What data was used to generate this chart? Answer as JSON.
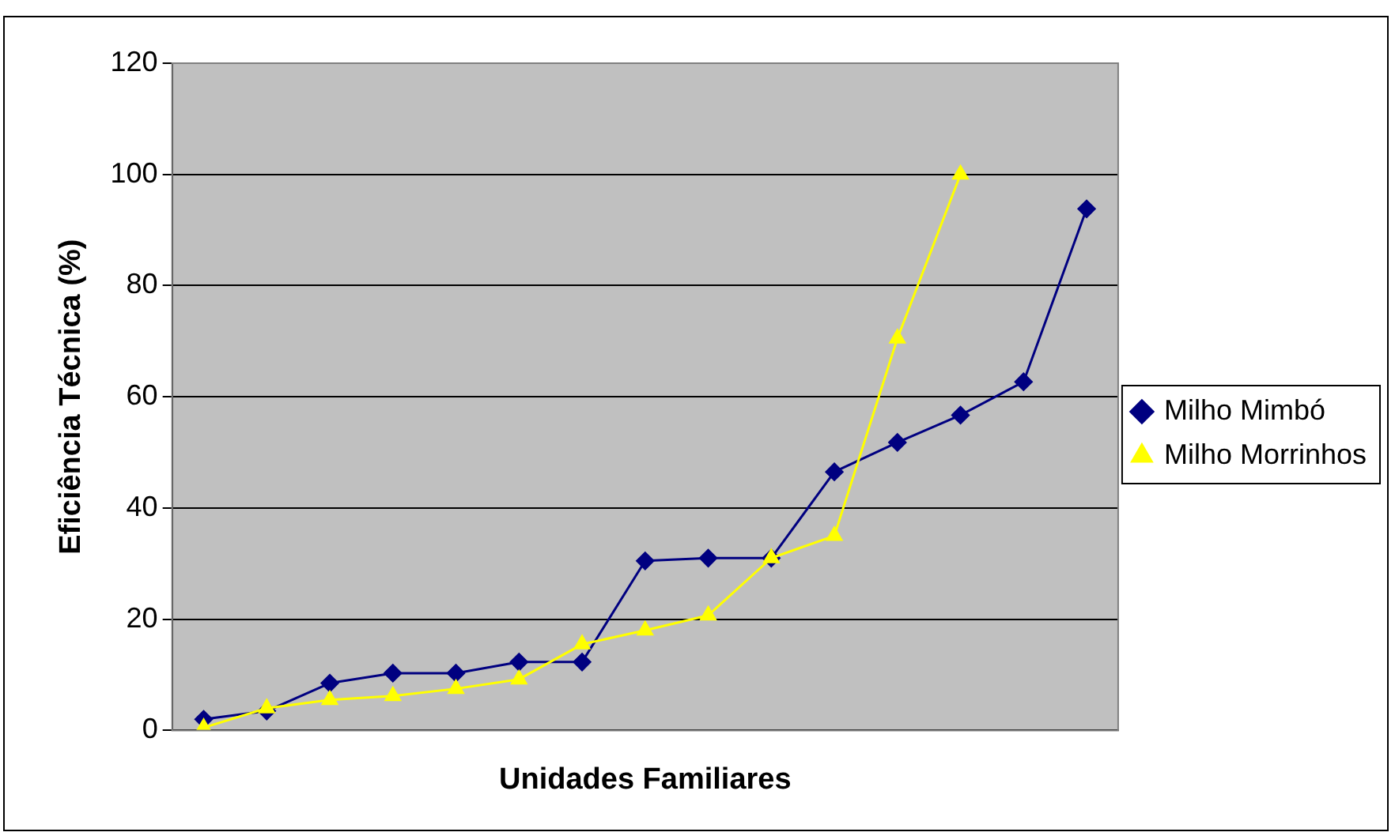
{
  "chart_data": {
    "type": "line",
    "xlabel": "Unidades Familiares",
    "ylabel": "Eficiência Técnica (%)",
    "categories": [
      null,
      null,
      null,
      null,
      null,
      null,
      null,
      null,
      null,
      null,
      null,
      null,
      null,
      null,
      null
    ],
    "series": [
      {
        "name": "Milho Mimbó",
        "color": "#000080",
        "marker": "diamond",
        "values": [
          2,
          3.5,
          8.5,
          10.3,
          10.3,
          12.3,
          12.3,
          30.5,
          31,
          31,
          46.5,
          51.8,
          56.7,
          62.7,
          93.8
        ]
      },
      {
        "name": "Milho Morrinhos",
        "color": "#ffff00",
        "marker": "triangle",
        "values": [
          0.5,
          4,
          5.5,
          6.2,
          7.5,
          9.2,
          15.5,
          18,
          20.7,
          31,
          35,
          70.5,
          100,
          null,
          null
        ]
      }
    ],
    "ylim": [
      0,
      120
    ],
    "yticks": [
      0,
      20,
      40,
      60,
      80,
      100,
      120
    ],
    "grid": "y",
    "legend": "right"
  }
}
